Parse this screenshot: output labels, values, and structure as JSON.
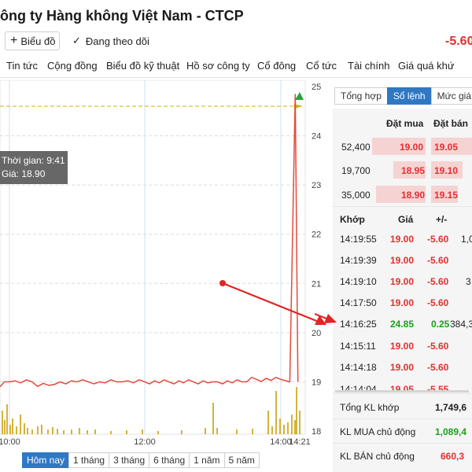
{
  "header": {
    "title": "ông ty Hàng không Việt Nam - CTCP",
    "add_chart_label": "Biểu đồ",
    "follow_label": "Đang theo dõi",
    "change": "-5.60"
  },
  "nav": [
    "Tin tức",
    "Cộng đồng",
    "Biểu đồ kỹ thuật",
    "Hồ sơ công ty",
    "Cổ đông",
    "Cổ tức",
    "Tài chính",
    "Giá quá khứ"
  ],
  "chart_data": {
    "type": "line",
    "x_tick_labels": [
      "10:00",
      "12:00",
      "14:00",
      "14:21"
    ],
    "y_tick_labels": [
      "25",
      "24",
      "23",
      "22",
      "21",
      "20",
      "19",
      "18"
    ],
    "ylim": [
      18,
      25
    ],
    "line_points": [
      [
        "9:41",
        18.9
      ],
      [
        "9:50",
        19.0
      ],
      [
        "10:00",
        19.0
      ],
      [
        "10:20",
        19.0
      ],
      [
        "10:40",
        18.95
      ],
      [
        "11:00",
        19.0
      ],
      [
        "11:20",
        19.0
      ],
      [
        "11:40",
        19.0
      ],
      [
        "12:00",
        19.0
      ],
      [
        "13:00",
        19.0
      ],
      [
        "13:30",
        19.0
      ],
      [
        "14:00",
        19.05
      ],
      [
        "14:10",
        19.0
      ],
      [
        "14:16",
        24.85
      ],
      [
        "14:19",
        19.0
      ]
    ],
    "reference_line": 24.6,
    "grid": true
  },
  "tooltip": {
    "time": "Thời gian: 9:41",
    "price": "Giá: 18.90"
  },
  "ranges": [
    "Hôm nay",
    "1 tháng",
    "3 tháng",
    "6 tháng",
    "1 năm",
    "5 năm"
  ],
  "right_tabs": [
    "Tổng hợp",
    "Sổ lệnh",
    "Mức giá"
  ],
  "orderbook": {
    "buy_header": "Đặt mua",
    "sell_header": "Đặt bán",
    "rows": [
      {
        "volume": "52,400",
        "buy": "19.00",
        "sell": "19.05"
      },
      {
        "volume": "19,700",
        "buy": "18.95",
        "sell": "19.10"
      },
      {
        "volume": "35,000",
        "buy": "18.90",
        "sell": "19.15"
      }
    ]
  },
  "trades": {
    "headers": [
      "Khớp",
      "Giá",
      "+/-"
    ],
    "rows": [
      {
        "time": "14:19:55",
        "price": "19.00",
        "change": "-5.60",
        "vol": "1,0",
        "color": "red"
      },
      {
        "time": "14:19:39",
        "price": "19.00",
        "change": "-5.60",
        "vol": "",
        "color": "red"
      },
      {
        "time": "14:19:10",
        "price": "19.00",
        "change": "-5.60",
        "vol": "3",
        "color": "red"
      },
      {
        "time": "14:17:50",
        "price": "19.00",
        "change": "-5.60",
        "vol": "",
        "color": "red"
      },
      {
        "time": "14:16:25",
        "price": "24.85",
        "change": "0.25",
        "vol": "384,3",
        "color": "green"
      },
      {
        "time": "14:15:11",
        "price": "19.00",
        "change": "-5.60",
        "vol": "",
        "color": "red"
      },
      {
        "time": "14:14:18",
        "price": "19.00",
        "change": "-5.60",
        "vol": "",
        "color": "red"
      },
      {
        "time": "14:14:04",
        "price": "19.05",
        "change": "-5.55",
        "vol": "",
        "color": "red"
      }
    ]
  },
  "summary": [
    {
      "label": "Tổng KL khớp",
      "value": "1,749,6",
      "color": "dark"
    },
    {
      "label": "KL MUA chủ động",
      "value": "1,089,4",
      "color": "green"
    },
    {
      "label": "KL BÁN chủ động",
      "value": "660,3",
      "color": "red"
    }
  ]
}
